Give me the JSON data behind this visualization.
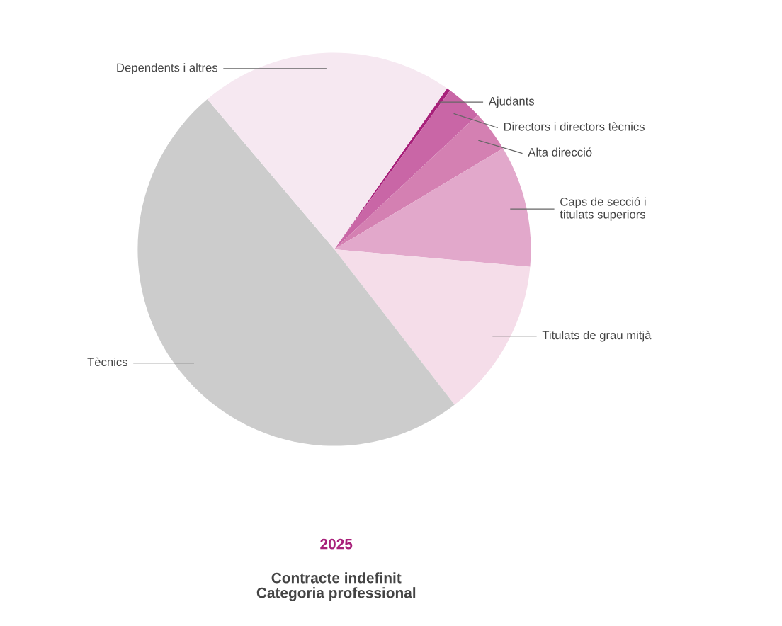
{
  "chart_data": {
    "type": "pie",
    "title": "2025",
    "subtitle": "Contracte indefinit\nCategoria professional",
    "categories": [
      "Ajudants",
      "Directors i directors tècnics",
      "Alta direcció",
      "Caps de secció i\ntitulats superiors",
      "Titulats de grau mitjà",
      "Tècnics",
      "Dependents i altres"
    ],
    "values": [
      0.3,
      3.0,
      3.4,
      10.0,
      13.1,
      49.3,
      20.9
    ],
    "colors": [
      "#a8207a",
      "#c966a6",
      "#d480b2",
      "#e2a8cb",
      "#f5dde9",
      "#cccccc",
      "#f6e8f1"
    ],
    "legend": false
  }
}
